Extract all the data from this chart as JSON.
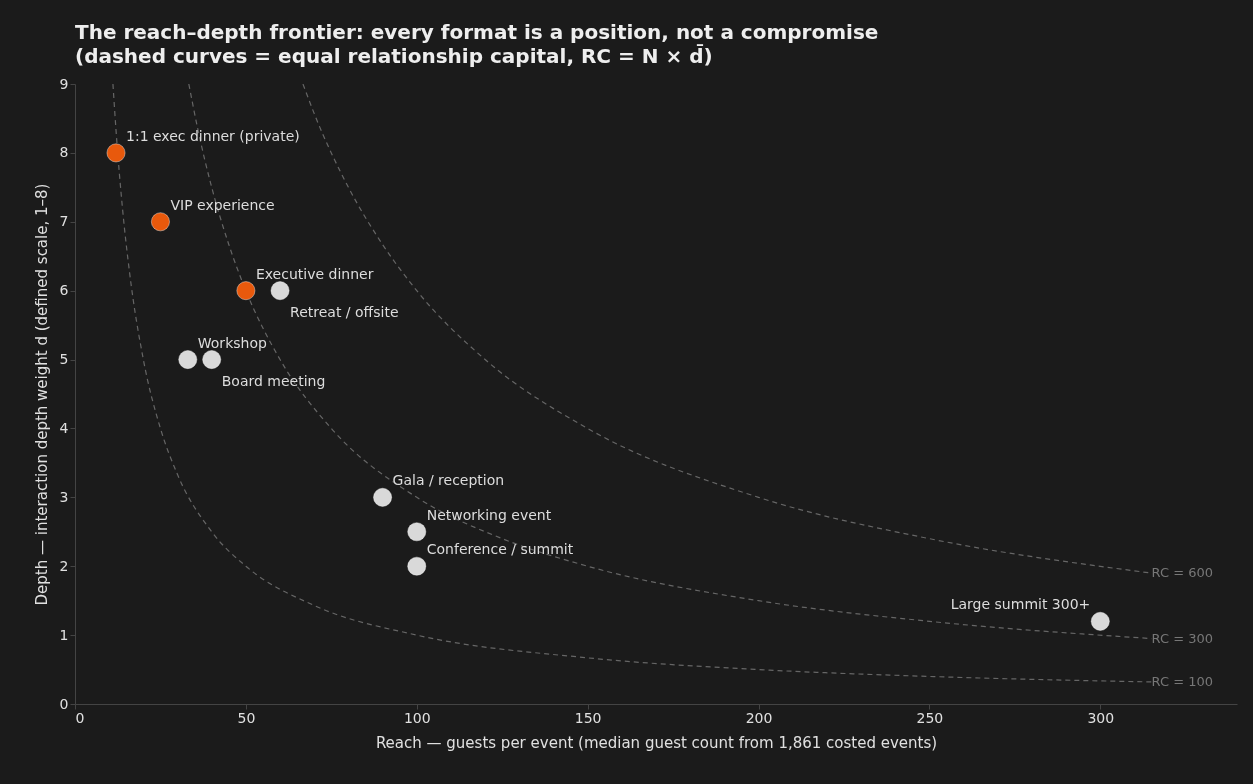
{
  "chart_data": {
    "type": "scatter",
    "title": "The reach–depth frontier: every format is a position, not a compromise",
    "subtitle": "(dashed curves = equal relationship capital, RC = N × d̄)",
    "xlabel": "Reach — guests per event (median guest count from 1,861 costed events)",
    "ylabel": "Depth — interaction depth weight d (defined scale, 1–8)",
    "xlim": [
      0,
      340
    ],
    "ylim": [
      0,
      9
    ],
    "xticks": [
      0,
      50,
      100,
      150,
      200,
      250,
      300
    ],
    "yticks": [
      0,
      1,
      2,
      3,
      4,
      5,
      6,
      7,
      8,
      9
    ],
    "grid": false,
    "marker": "circle",
    "series": [
      {
        "type": "line",
        "name": "RC = 100",
        "color": "#666666",
        "line_style": "dashed",
        "marker": "none",
        "x": [
          11.1,
          12,
          14,
          16,
          20,
          25,
          30,
          40,
          50,
          70,
          100,
          150,
          200,
          250,
          315
        ],
        "values": [
          9.0,
          8.33,
          7.14,
          6.25,
          5,
          4,
          3.33,
          2.5,
          2,
          1.43,
          1,
          0.67,
          0.5,
          0.4,
          0.32
        ]
      },
      {
        "type": "line",
        "name": "RC = 300",
        "color": "#666666",
        "line_style": "dashed",
        "marker": "none",
        "x": [
          33.3,
          36,
          40,
          45,
          50,
          60,
          75,
          100,
          125,
          150,
          200,
          250,
          315
        ],
        "values": [
          9.0,
          8.33,
          7.5,
          6.67,
          6,
          5,
          4,
          3,
          2.4,
          2,
          1.5,
          1.2,
          0.95
        ]
      },
      {
        "type": "line",
        "name": "RC = 600",
        "color": "#666666",
        "line_style": "dashed",
        "marker": "none",
        "x": [
          66.7,
          70,
          80,
          90,
          100,
          120,
          150,
          200,
          250,
          315
        ],
        "values": [
          9.0,
          8.57,
          7.5,
          6.67,
          6,
          5,
          4,
          3,
          2.4,
          1.9
        ]
      },
      {
        "color": "#e8590c",
        "x": [
          12,
          25,
          50
        ],
        "values": [
          8,
          7,
          6
        ]
      },
      {
        "color": "#d9d9d9",
        "x": [
          60,
          33,
          40,
          90,
          100,
          100,
          300
        ],
        "values": [
          6,
          5,
          5,
          3,
          2.5,
          2,
          1.2
        ]
      }
    ],
    "annotations": [
      {
        "text": "1:1 exec dinner (private)",
        "x": 12,
        "y": 8
      },
      {
        "text": "VIP experience",
        "x": 25,
        "y": 7
      },
      {
        "text": "Executive dinner",
        "x": 50,
        "y": 6
      },
      {
        "text": "Retreat / offsite",
        "x": 60,
        "y": 6
      },
      {
        "text": "Workshop",
        "x": 33,
        "y": 5
      },
      {
        "text": "Board meeting",
        "x": 40,
        "y": 5
      },
      {
        "text": "Gala / reception",
        "x": 90,
        "y": 3
      },
      {
        "text": "Networking event",
        "x": 100,
        "y": 2.5
      },
      {
        "text": "Conference / summit",
        "x": 100,
        "y": 2
      },
      {
        "text": "Large summit 300+",
        "x": 300,
        "y": 1.2
      }
    ]
  }
}
